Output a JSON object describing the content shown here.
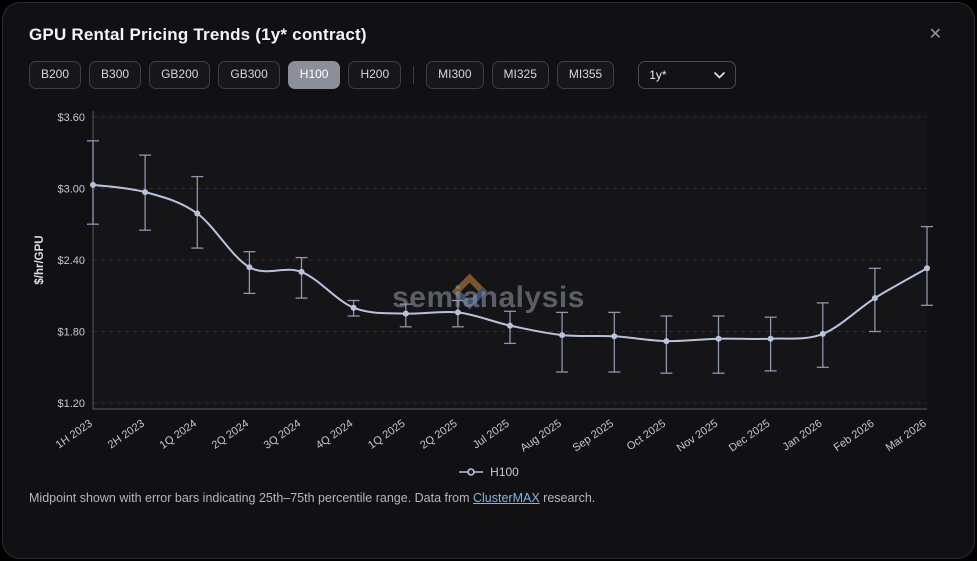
{
  "window": {
    "title": "GPU Rental Pricing Trends (1y* contract)",
    "close_label": "✕"
  },
  "toolbar": {
    "gpu_buttons": [
      {
        "label": "B200",
        "active": false
      },
      {
        "label": "B300",
        "active": false
      },
      {
        "label": "GB200",
        "active": false
      },
      {
        "label": "GB300",
        "active": false
      },
      {
        "label": "H100",
        "active": true
      },
      {
        "label": "H200",
        "active": false
      }
    ],
    "amd_buttons": [
      {
        "label": "MI300"
      },
      {
        "label": "MI325"
      },
      {
        "label": "MI355"
      }
    ],
    "contract_select": {
      "value": "1y*"
    }
  },
  "chart_data": {
    "type": "line",
    "title": "GPU Rental Pricing Trends (1y* contract)",
    "ylabel": "$/hr/GPU",
    "ylim": [
      1.15,
      3.65
    ],
    "yticks": [
      1.2,
      1.8,
      2.4,
      3.0,
      3.6
    ],
    "ytick_labels": [
      "$1.20",
      "$1.80",
      "$2.40",
      "$3.00",
      "$3.60"
    ],
    "grid": "dashed-horizontal",
    "legend_position": "bottom",
    "categories": [
      "1H 2023",
      "2H 2023",
      "1Q 2024",
      "2Q 2024",
      "3Q 2024",
      "4Q 2024",
      "1Q 2025",
      "2Q 2025",
      "Jul 2025",
      "Aug 2025",
      "Sep 2025",
      "Oct 2025",
      "Nov 2025",
      "Dec 2025",
      "Jan 2026",
      "Feb 2026",
      "Mar 2026"
    ],
    "series": [
      {
        "name": "H100",
        "mid": [
          3.03,
          2.97,
          2.79,
          2.34,
          2.3,
          2.0,
          1.95,
          1.96,
          1.85,
          1.77,
          1.76,
          1.72,
          1.74,
          1.74,
          1.78,
          2.08,
          2.33
        ],
        "p25": [
          2.7,
          2.65,
          2.5,
          2.12,
          2.08,
          1.93,
          1.84,
          1.84,
          1.7,
          1.46,
          1.46,
          1.45,
          1.45,
          1.47,
          1.5,
          1.8,
          2.02
        ],
        "p75": [
          3.4,
          3.28,
          3.1,
          2.47,
          2.42,
          2.06,
          2.03,
          2.06,
          1.97,
          1.96,
          1.96,
          1.93,
          1.93,
          1.92,
          2.04,
          2.33,
          2.68
        ]
      }
    ]
  },
  "watermark": {
    "text": "semianalysis"
  },
  "footer": {
    "text_before_link": "Midpoint shown with error bars indicating 25th–75th percentile range. Data from ",
    "link_text": "ClusterMAX",
    "text_after_link": " research."
  },
  "colors": {
    "line": "#b9c2dc",
    "error_bar": "#9aa3bd",
    "link": "#7fb5e6",
    "active_button_bg": "#8b8f99",
    "watermark_orange": "#d08a3e",
    "watermark_blue": "#5b7fb5"
  }
}
